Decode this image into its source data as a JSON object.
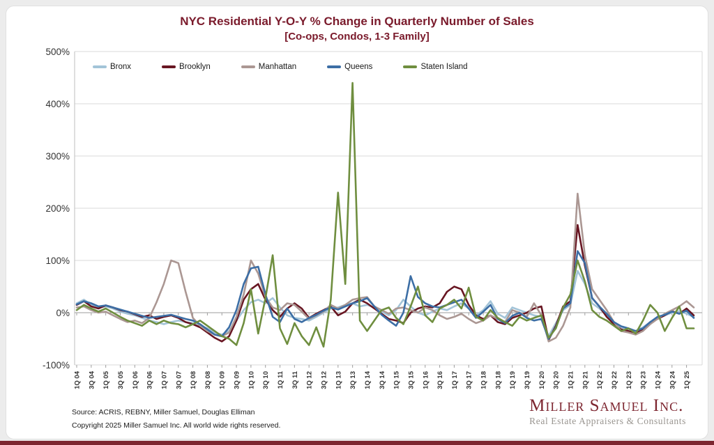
{
  "title": {
    "line1": "NYC Residential Y-O-Y % Change in Quarterly Number of Sales",
    "line2": "[Co-ops, Condos, 1-3 Family]"
  },
  "source": {
    "line1": "Source: ACRIS, REBNY, Miller Samuel, Douglas Elliman",
    "line2": "Copyright 2025 Miller Samuel Inc.  All world wide rights reserved."
  },
  "logo": {
    "name": "Miller Samuel Inc.",
    "tagline": "Real Estate Appraisers & Consultants"
  },
  "colors": {
    "accent_maroon": "#7a1a2b",
    "logo_maroon": "#7d2630",
    "gridline": "#d9d9d9",
    "axis": "#bfbfbf",
    "zero_axis": "#9e9e9e",
    "tick_text": "#333333"
  },
  "chart_data": {
    "type": "line",
    "title": "NYC Residential Y-O-Y % Change in Quarterly Number of Sales [Co-ops, Condos, 1-3 Family]",
    "xlabel": "",
    "ylabel": "",
    "ylim": [
      -100,
      500
    ],
    "ytick_labels": [
      "500%",
      "400%",
      "300%",
      "200%",
      "100%",
      "0%",
      "-100%"
    ],
    "ytick_values": [
      500,
      400,
      300,
      200,
      100,
      0,
      -100
    ],
    "grid": true,
    "legend_position": "top-left-inside",
    "x_label_rotation": -90,
    "points_per_label": 2,
    "x_labels": [
      "1Q 04",
      "3Q 04",
      "1Q 05",
      "3Q 05",
      "1Q 06",
      "3Q 06",
      "1Q 07",
      "3Q 07",
      "1Q 08",
      "3Q 08",
      "1Q 09",
      "3Q 09",
      "1Q 10",
      "3Q 10",
      "1Q 11",
      "3Q 11",
      "1Q 12",
      "3Q 12",
      "1Q 13",
      "3Q 13",
      "1Q 14",
      "3Q 14",
      "1Q 15",
      "3Q 15",
      "1Q 16",
      "3Q 16",
      "1Q 17",
      "3Q 17",
      "1Q 18",
      "3Q 18",
      "1Q 19",
      "3Q 19",
      "1Q 20",
      "3Q 20",
      "1Q 21",
      "3Q 21",
      "1Q 22",
      "3Q 22",
      "1Q 23",
      "3Q 23",
      "1Q 24",
      "3Q 24",
      "1Q 25"
    ],
    "series": [
      {
        "name": "Bronx",
        "color": "#a3c4d8",
        "values": [
          18,
          25,
          15,
          10,
          12,
          8,
          2,
          -2,
          -5,
          -10,
          -15,
          -18,
          -22,
          -18,
          -15,
          -18,
          -20,
          -25,
          -30,
          -38,
          -42,
          -35,
          -15,
          5,
          20,
          25,
          18,
          28,
          10,
          -5,
          -10,
          -12,
          -15,
          -8,
          0,
          8,
          10,
          15,
          18,
          12,
          15,
          10,
          2,
          -5,
          5,
          25,
          12,
          0,
          -5,
          2,
          8,
          5,
          12,
          18,
          8,
          -5,
          5,
          22,
          -2,
          -10,
          10,
          5,
          0,
          -5,
          -8,
          -45,
          -20,
          5,
          15,
          80,
          55,
          18,
          8,
          -5,
          -18,
          -28,
          -32,
          -35,
          -28,
          -18,
          -8,
          -5,
          0,
          3,
          -2,
          -8
        ]
      },
      {
        "name": "Brooklyn",
        "color": "#681622",
        "values": [
          15,
          22,
          12,
          8,
          14,
          10,
          5,
          2,
          -3,
          -8,
          -5,
          -12,
          -8,
          -5,
          -10,
          -18,
          -22,
          -28,
          -38,
          -48,
          -55,
          -45,
          -15,
          25,
          45,
          55,
          25,
          5,
          -8,
          8,
          18,
          8,
          -10,
          -2,
          5,
          12,
          -5,
          2,
          18,
          25,
          18,
          8,
          -2,
          -12,
          -15,
          -20,
          0,
          8,
          12,
          10,
          18,
          40,
          50,
          45,
          15,
          -5,
          -12,
          -5,
          -18,
          -22,
          -10,
          -5,
          0,
          8,
          12,
          -52,
          -25,
          12,
          22,
          168,
          90,
          28,
          12,
          -8,
          -22,
          -32,
          -35,
          -40,
          -32,
          -18,
          -12,
          -5,
          3,
          -2,
          8,
          -5
        ]
      },
      {
        "name": "Manhattan",
        "color": "#ab9793",
        "values": [
          10,
          12,
          5,
          0,
          2,
          -5,
          -12,
          -18,
          -15,
          -20,
          -10,
          20,
          55,
          100,
          95,
          40,
          -10,
          -25,
          -35,
          -42,
          -45,
          -38,
          -8,
          35,
          100,
          75,
          30,
          10,
          5,
          18,
          15,
          2,
          -12,
          -5,
          2,
          15,
          8,
          15,
          25,
          28,
          30,
          12,
          5,
          -2,
          8,
          10,
          5,
          0,
          10,
          5,
          -5,
          -12,
          -8,
          -2,
          -12,
          -20,
          -15,
          -5,
          -12,
          -18,
          5,
          0,
          -8,
          18,
          -5,
          -55,
          -48,
          -25,
          10,
          228,
          110,
          45,
          25,
          5,
          -18,
          -35,
          -38,
          -42,
          -35,
          -22,
          -12,
          -2,
          5,
          12,
          22,
          10
        ]
      },
      {
        "name": "Queens",
        "color": "#3c6ea5",
        "values": [
          16,
          22,
          18,
          12,
          14,
          10,
          6,
          2,
          -2,
          -6,
          -10,
          -8,
          -6,
          -4,
          -8,
          -12,
          -15,
          -22,
          -32,
          -42,
          -45,
          -28,
          5,
          55,
          85,
          88,
          35,
          -8,
          -18,
          8,
          -12,
          -18,
          -10,
          -4,
          4,
          10,
          6,
          12,
          18,
          22,
          28,
          12,
          -4,
          -15,
          -25,
          0,
          70,
          30,
          18,
          12,
          10,
          15,
          20,
          25,
          8,
          -10,
          2,
          15,
          -12,
          -20,
          -6,
          0,
          -10,
          -15,
          -12,
          -50,
          -28,
          8,
          18,
          118,
          95,
          28,
          12,
          -2,
          -18,
          -26,
          -30,
          -35,
          -30,
          -18,
          -8,
          -4,
          2,
          -2,
          4,
          -10
        ]
      },
      {
        "name": "Staten Island",
        "color": "#6f8e3f",
        "values": [
          5,
          15,
          8,
          2,
          8,
          0,
          -8,
          -15,
          -20,
          -25,
          -15,
          -22,
          -15,
          -20,
          -22,
          -28,
          -22,
          -15,
          -25,
          -35,
          -45,
          -50,
          -62,
          -20,
          45,
          -40,
          28,
          110,
          -30,
          -60,
          -20,
          -45,
          -62,
          -28,
          -65,
          25,
          230,
          55,
          440,
          -15,
          -35,
          -15,
          5,
          10,
          -10,
          -22,
          12,
          50,
          -5,
          -18,
          8,
          15,
          25,
          8,
          48,
          -8,
          -15,
          5,
          -10,
          -18,
          -25,
          -8,
          -15,
          -10,
          -5,
          -48,
          -30,
          10,
          35,
          100,
          60,
          5,
          -8,
          -15,
          -25,
          -35,
          -30,
          -40,
          -15,
          15,
          0,
          -35,
          -10,
          12,
          -30,
          -30
        ]
      }
    ]
  }
}
